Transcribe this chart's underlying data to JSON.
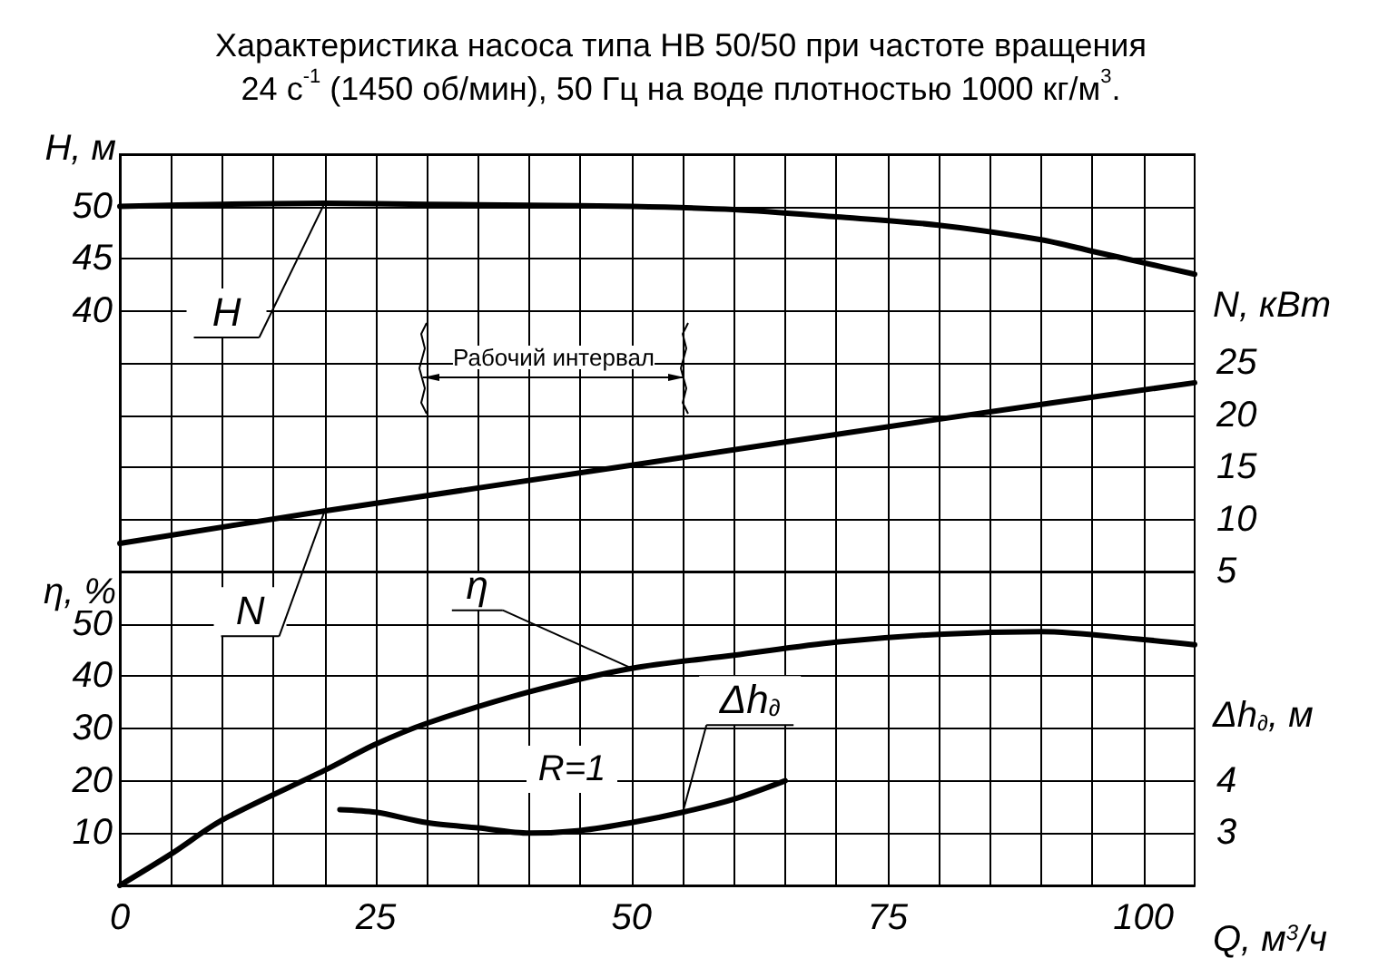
{
  "chart_data": [
    {
      "type": "line",
      "title": "Характеристика насоса типа НВ 50/50 при частоте вращения\n24 с$^{-1}$ (1450 об/мин), 50 Гц на воде плотностью 1000 кг/м$^{3}$.",
      "ylabel": "H, м",
      "y2label": "N, кВт",
      "xlim": [
        0,
        105
      ],
      "xticks": [
        0,
        5,
        10,
        15,
        20,
        25,
        30,
        35,
        40,
        45,
        50,
        55,
        60,
        65,
        70,
        75,
        80,
        85,
        90,
        95,
        100
      ],
      "ylim": [
        15,
        55
      ],
      "yticks": [
        {
          "value": 15,
          "label": null
        },
        {
          "value": 20,
          "label": null
        },
        {
          "value": 25,
          "label": null
        },
        {
          "value": 30,
          "label": null
        },
        {
          "value": 35,
          "label": null
        },
        40,
        45,
        50,
        {
          "value": 55,
          "label": null
        }
      ],
      "y2lim": [
        5,
        45
      ],
      "y2ticks": [
        5,
        10,
        15,
        20,
        25
      ],
      "tick_labels": "y",
      "grid": true,
      "marker": "none",
      "line_style": "solid",
      "series": [
        {
          "name": "H",
          "color": "#000000",
          "x": [
            0,
            10,
            20,
            30,
            40,
            50,
            60,
            70,
            80,
            90,
            95,
            100,
            105
          ],
          "values": [
            50,
            50.2,
            50.3,
            50.2,
            50.1,
            50,
            49.7,
            49,
            48.2,
            46.8,
            45.7,
            44.6,
            43.5
          ]
        },
        {
          "name": "N",
          "color": "#000000",
          "axis": "y2",
          "x": [
            0,
            20,
            50,
            80,
            105
          ],
          "values": [
            7.7,
            10.8,
            15.2,
            19.6,
            23.1
          ]
        }
      ],
      "annotations": [
        "Рабочий интервал"
      ]
    },
    {
      "type": "line",
      "xlabel": "Q, м$^{3}$/ч",
      "ylabel": "η, %",
      "y2label": "Δh$_{∂}$, м",
      "xlim": [
        0,
        105
      ],
      "xticks": [
        0,
        {
          "value": 5,
          "label": null
        },
        {
          "value": 10,
          "label": null
        },
        {
          "value": 15,
          "label": null
        },
        {
          "value": 20,
          "label": null
        },
        25,
        {
          "value": 30,
          "label": null
        },
        {
          "value": 35,
          "label": null
        },
        {
          "value": 40,
          "label": null
        },
        {
          "value": 45,
          "label": null
        },
        50,
        {
          "value": 55,
          "label": null
        },
        {
          "value": 60,
          "label": null
        },
        {
          "value": 65,
          "label": null
        },
        {
          "value": 70,
          "label": null
        },
        75,
        {
          "value": 80,
          "label": null
        },
        {
          "value": 85,
          "label": null
        },
        {
          "value": 90,
          "label": null
        },
        {
          "value": 95,
          "label": null
        },
        100
      ],
      "ylim": [
        0,
        60
      ],
      "yticks": [
        {
          "value": 0,
          "label": null
        },
        10,
        20,
        30,
        40,
        50,
        {
          "value": 60,
          "label": null
        }
      ],
      "y2lim": [
        2,
        8
      ],
      "y2ticks": [
        3,
        4
      ],
      "grid": true,
      "marker": "none",
      "line_style": "solid",
      "series": [
        {
          "name": "η",
          "color": "#000000",
          "x": [
            0,
            5,
            10,
            20,
            25,
            30,
            40,
            50,
            60,
            70,
            80,
            90,
            100,
            105
          ],
          "values": [
            0,
            6,
            12.5,
            22,
            27,
            31,
            37,
            41.5,
            44,
            46.5,
            48,
            48.5,
            47,
            46
          ]
        },
        {
          "name": "Δh$_{∂}$",
          "color": "#000000",
          "axis": "y2",
          "x": [
            21.5,
            25,
            30,
            35,
            40,
            45,
            50,
            55,
            60,
            65
          ],
          "values": [
            3.45,
            3.4,
            3.2,
            3.1,
            3.0,
            3.05,
            3.2,
            3.4,
            3.65,
            4.0
          ]
        }
      ],
      "annotations": [
        "R=1"
      ]
    }
  ]
}
